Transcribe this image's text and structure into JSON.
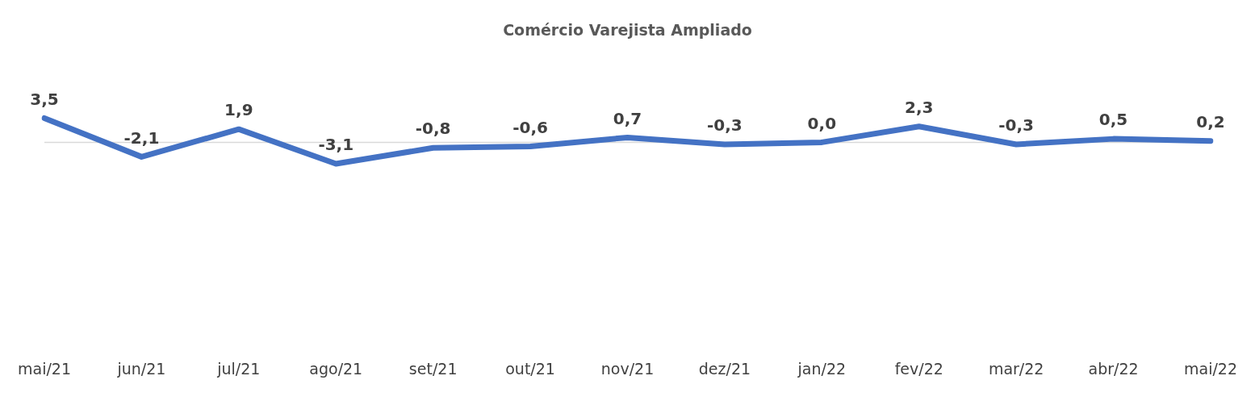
{
  "chart_data": {
    "type": "line",
    "title": "Comércio Varejista Ampliado",
    "categories": [
      "mai/21",
      "jun/21",
      "jul/21",
      "ago/21",
      "set/21",
      "out/21",
      "nov/21",
      "dez/21",
      "jan/22",
      "fev/22",
      "mar/22",
      "abr/22",
      "mai/22"
    ],
    "values": [
      3.5,
      -2.1,
      1.9,
      -3.1,
      -0.8,
      -0.6,
      0.7,
      -0.3,
      0.0,
      2.3,
      -0.3,
      0.5,
      0.2
    ],
    "value_labels": [
      "3,5",
      "-2,1",
      "1,9",
      "-3,1",
      "-0,8",
      "-0,6",
      "0,7",
      "-0,3",
      "0,0",
      "2,3",
      "-0,3",
      "0,5",
      "0,2"
    ],
    "color": "#4472c4",
    "tick_labels": "x",
    "grid": false,
    "legend": false,
    "marker": "none",
    "line_style": "solid",
    "ref_lines": [
      {
        "axis": "y",
        "value": 0,
        "color": "#d9d9d9"
      }
    ]
  }
}
